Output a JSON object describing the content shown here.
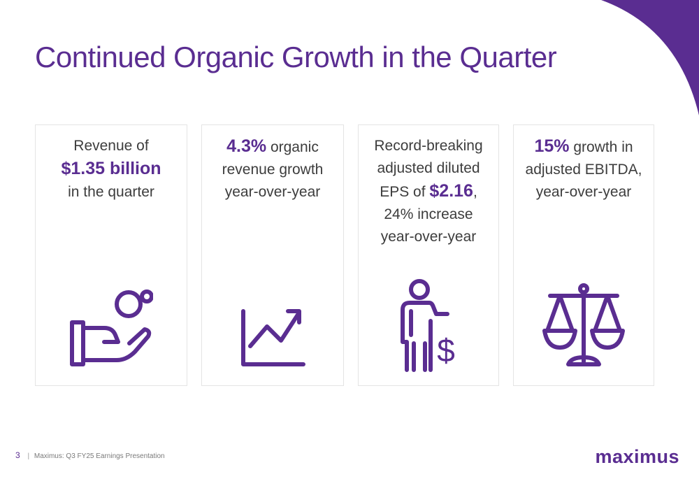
{
  "slide": {
    "title": "Continued Organic Growth in the Quarter",
    "accent_color": "#5a2d91"
  },
  "cards": [
    {
      "line1": "Revenue of",
      "highlight": "$1.35 billion",
      "line3": "in the quarter",
      "icon": "hand-coins-icon"
    },
    {
      "highlight": "4.3%",
      "line1_rest": " organic",
      "line2": "revenue growth",
      "line3": "year-over-year",
      "icon": "line-chart-up-icon"
    },
    {
      "line1": "Record-breaking",
      "line2": "adjusted diluted",
      "line3_pre": "EPS of ",
      "highlight": "$2.16",
      "line3_post": ",",
      "line4": "24% increase",
      "line5": "year-over-year",
      "icon": "person-dollar-icon"
    },
    {
      "highlight": "15%",
      "line1_rest": " growth in",
      "line2": "adjusted EBITDA,",
      "line3": "year-over-year",
      "icon": "balance-scale-icon"
    }
  ],
  "footer": {
    "page_number": "3",
    "separator": "|",
    "text": "Maximus: Q3 FY25 Earnings Presentation"
  },
  "logo": {
    "text": "maximus"
  }
}
